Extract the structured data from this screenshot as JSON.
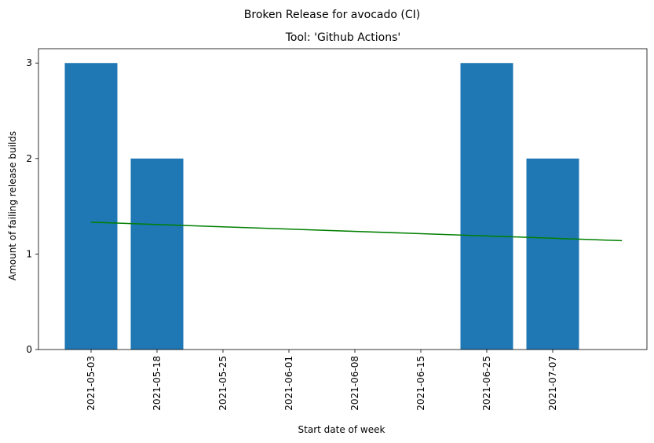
{
  "chart_data": {
    "type": "bar",
    "suptitle": "Broken Release for avocado (CI)",
    "title": "Tool: 'Github Actions'",
    "xlabel": "Start date of week",
    "ylabel": "Amount of failing release builds",
    "categories": [
      "2021-05-03",
      "2021-05-18",
      "2021-05-25",
      "2021-06-01",
      "2021-06-08",
      "2021-06-15",
      "2021-06-25",
      "2021-07-07"
    ],
    "values": [
      3,
      2,
      0,
      0,
      0,
      0,
      3,
      2
    ],
    "yticks": [
      0,
      1,
      2,
      3
    ],
    "ylim": [
      0,
      3.15
    ],
    "bar_color": "#1f77b4",
    "trend": {
      "color": "#008000",
      "x_start_index": 0,
      "x_end_index": 8.05,
      "y_start": 1.333,
      "y_end": 1.14
    },
    "grid": false,
    "legend": "none"
  }
}
